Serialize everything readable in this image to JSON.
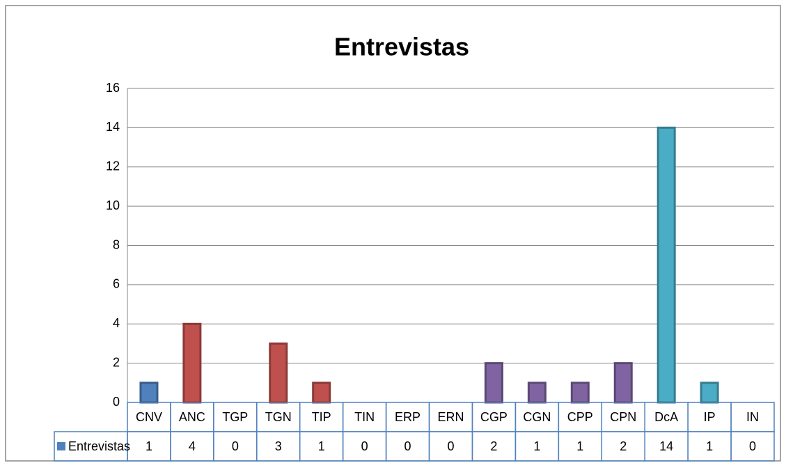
{
  "chart_data": {
    "type": "bar",
    "title": "Entrevistas",
    "categories": [
      "CNV",
      "ANC",
      "TGP",
      "TGN",
      "TIP",
      "TIN",
      "ERP",
      "ERN",
      "CGP",
      "CGN",
      "CPP",
      "CPN",
      "DcA",
      "IP",
      "IN"
    ],
    "series": [
      {
        "name": "Entrevistas",
        "color": "#4f81bd",
        "values": [
          1,
          4,
          0,
          3,
          1,
          0,
          0,
          0,
          2,
          1,
          1,
          2,
          14,
          1,
          0
        ]
      }
    ],
    "colors": [
      "#4f81bd",
      "#c0504d",
      "#c0504d",
      "#c0504d",
      "#c0504d",
      "#c0504d",
      "#8064a2",
      "#8064a2",
      "#8064a2",
      "#8064a2",
      "#8064a2",
      "#8064a2",
      "#4bacc6",
      "#4bacc6",
      "#4bacc6"
    ],
    "ylim": [
      0,
      16
    ],
    "yticks": [
      0,
      2,
      4,
      6,
      8,
      10,
      12,
      14,
      16
    ],
    "grid": true,
    "data_table": true
  }
}
